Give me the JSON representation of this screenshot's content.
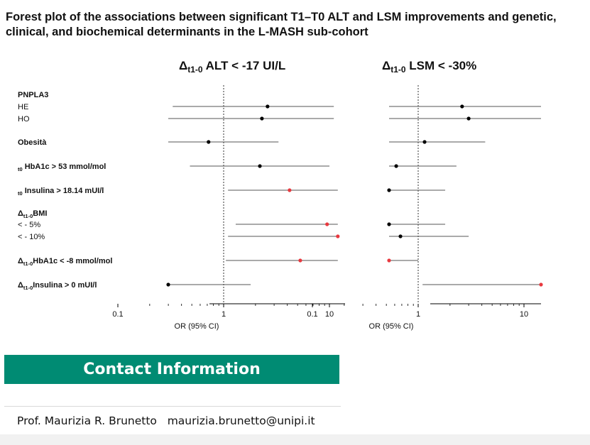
{
  "title": "Forest plot of the associations between significant T1–T0 ALT and LSM improvements and genetic, clinical, and biochemical determinants in the L-MASH sub-cohort",
  "contact": {
    "heading": "Contact Information",
    "name": "Prof. Maurizia R. Brunetto",
    "email": "maurizia.brunetto@unipi.it"
  },
  "colors": {
    "significant": "#e8393f",
    "nonsignificant": "#000000",
    "contact_bar": "#008b73"
  },
  "chart_data": {
    "type": "forest",
    "xscale": "log",
    "xlim": [
      0.05,
      15
    ],
    "xticks": [
      "0.1",
      "1",
      "10"
    ],
    "xlabel": "OR (95% CI)",
    "reference_line": 1,
    "row_labels": [
      {
        "text": "PNPLA3",
        "bold": true
      },
      {
        "text": "HE",
        "bold": false
      },
      {
        "text": "HO",
        "bold": false
      },
      {
        "text": "Obesità",
        "bold": true
      },
      {
        "prefix": "t0",
        "text": "HbA1c > 53 mmol/mol",
        "bold": true
      },
      {
        "prefix": "t0",
        "text": "Insulina > 18.14 mUI/l",
        "bold": true
      },
      {
        "prefix": "Δt1-0",
        "text": "BMI",
        "bold": true
      },
      {
        "text": "< - 5%",
        "bold": false
      },
      {
        "text": "< - 10%",
        "bold": false
      },
      {
        "prefix": "Δt1-0",
        "text": "HbA1c < -8 mmol/mol",
        "bold": true
      },
      {
        "prefix": "Δt1-0",
        "text": "Insulina > 0 mUI/l",
        "bold": true
      }
    ],
    "panels": [
      {
        "title_delta": "Δ",
        "title_sub": "t1-0",
        "title_rest": " ALT < -17 UI/L",
        "rows": [
          {
            "label": "HE",
            "or": 2.6,
            "lo": 0.33,
            "hi": 11
          },
          {
            "label": "HO",
            "or": 2.3,
            "lo": 0.25,
            "hi": 11
          },
          {
            "label": "Obesità",
            "or": 0.72,
            "lo": 0.14,
            "hi": 3.3
          },
          {
            "label": "t0 HbA1c > 53 mmol/mol",
            "or": 2.2,
            "lo": 0.48,
            "hi": 10
          },
          {
            "label": "t0 Insulina > 18.14 mUI/l",
            "or": 4.2,
            "lo": 1.1,
            "hi": 12
          },
          {
            "label": "< - 5%",
            "or": 9.5,
            "lo": 1.3,
            "hi": 12
          },
          {
            "label": "< - 10%",
            "or": 12,
            "lo": 1.1,
            "hi": 12
          },
          {
            "label": "Δt1-0 HbA1c < -8 mmol/mol",
            "or": 5.3,
            "lo": 1.05,
            "hi": 12
          },
          {
            "label": "Δt1-0 Insulina > 0 mUI/l",
            "or": 0.13,
            "lo": 0.008,
            "hi": 1.8
          }
        ],
        "significant": [
          false,
          false,
          false,
          false,
          true,
          true,
          true,
          true,
          false
        ]
      },
      {
        "title_delta": "Δ",
        "title_sub": "t1-0",
        "title_rest": " LSM < -30%",
        "rows": [
          {
            "label": "HE",
            "or": 2.6,
            "lo": 0.38,
            "hi": 16
          },
          {
            "label": "HO",
            "or": 3.0,
            "lo": 0.38,
            "hi": 16
          },
          {
            "label": "Obesità",
            "or": 1.15,
            "lo": 0.3,
            "hi": 4.3
          },
          {
            "label": "t0 HbA1c > 53 mmol/mol",
            "or": 0.62,
            "lo": 0.17,
            "hi": 2.3
          },
          {
            "label": "t0 Insulina > 18.14 mUI/l",
            "or": 0.37,
            "lo": 0.1,
            "hi": 1.8
          },
          {
            "label": "< - 5%",
            "or": 0.41,
            "lo": 0.1,
            "hi": 1.8
          },
          {
            "label": "< - 10%",
            "or": 0.68,
            "lo": 0.17,
            "hi": 3.0
          },
          {
            "label": "Δt1-0 HbA1c < -8 mmol/mol",
            "or": 0.18,
            "lo": 0.03,
            "hi": 1.0
          },
          {
            "label": "Δt1-0 Insulina > 0 mUI/l",
            "or": 15,
            "lo": 1.1,
            "hi": 16
          }
        ],
        "significant": [
          false,
          false,
          false,
          false,
          false,
          false,
          false,
          true,
          true
        ]
      }
    ]
  }
}
